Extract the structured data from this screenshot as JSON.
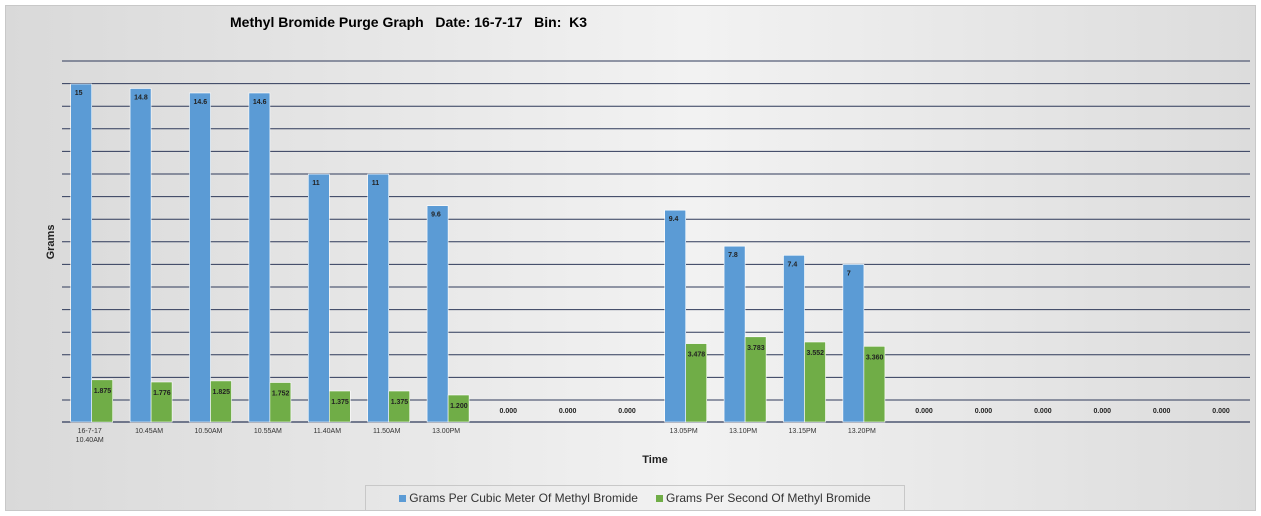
{
  "chart_data": {
    "type": "bar",
    "title": "Methyl Bromide Purge Graph   Date: 16-7-17   Bin:  K3",
    "xlabel": "Time",
    "ylabel": "Grams",
    "ylim": [
      0,
      15
    ],
    "grid": true,
    "legend_position": "bottom",
    "categories": [
      [
        "16-7-17",
        "10.40AM"
      ],
      [
        "10.45AM"
      ],
      [
        "10.50AM"
      ],
      [
        "10.55AM"
      ],
      [
        "11.40AM"
      ],
      [
        "11.50AM"
      ],
      [
        "13.00PM"
      ],
      [
        ""
      ],
      [
        ""
      ],
      [
        ""
      ],
      [
        "13.05PM"
      ],
      [
        "13.10PM"
      ],
      [
        "13.15PM"
      ],
      [
        "13.20PM"
      ],
      [
        ""
      ],
      [
        ""
      ],
      [
        ""
      ],
      [
        ""
      ],
      [
        ""
      ],
      [
        ""
      ]
    ],
    "series": [
      {
        "name": "Grams Per Cubic Meter Of Methyl Bromide",
        "color": "#5b9bd5",
        "values": [
          15,
          14.8,
          14.6,
          14.6,
          11,
          11,
          9.6,
          null,
          null,
          null,
          9.4,
          7.8,
          7.4,
          7,
          null,
          null,
          null,
          null,
          null,
          null
        ],
        "labels": [
          "15",
          "14.8",
          "14.6",
          "14.6",
          "11",
          "11",
          "9.6",
          "",
          "",
          "",
          "9.4",
          "7.8",
          "7.4",
          "7",
          "",
          "",
          "",
          "",
          "",
          ""
        ]
      },
      {
        "name": "Grams Per Second Of Methyl Bromide",
        "color": "#70ad47",
        "values": [
          1.875,
          1.776,
          1.825,
          1.752,
          1.375,
          1.375,
          1.2,
          0,
          0,
          0,
          3.478,
          3.783,
          3.552,
          3.36,
          0,
          0,
          0,
          0,
          0,
          0
        ],
        "labels": [
          "1.875",
          "1.776",
          "1.825",
          "1.752",
          "1.375",
          "1.375",
          "1.200",
          "0.000",
          "0.000",
          "0.000",
          "3.478",
          "3.783",
          "3.552",
          "3.360",
          "0.000",
          "0.000",
          "0.000",
          "0.000",
          "0.000",
          "0.000"
        ]
      }
    ]
  }
}
